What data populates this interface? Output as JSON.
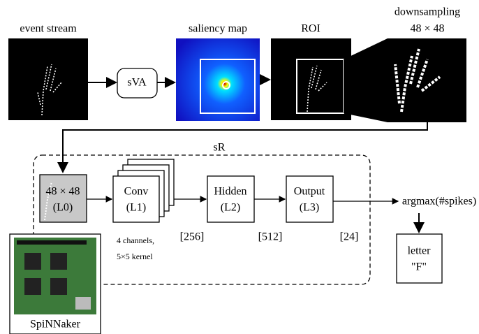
{
  "top": {
    "event_stream": "event stream",
    "sva": "sVA",
    "saliency_map": "saliency map",
    "roi": "ROI",
    "downsampling": "downsampling",
    "downsampling_size": "48 × 48"
  },
  "sr": {
    "title": "sR",
    "layers": [
      {
        "label": "48 × 48",
        "sublabel": "(L0)"
      },
      {
        "label": "Conv",
        "sublabel": "(L1)"
      },
      {
        "label": "Hidden",
        "sublabel": "(L2)"
      },
      {
        "label": "Output",
        "sublabel": "(L3)"
      }
    ],
    "conv_note": [
      "4 channels,",
      "5×5 kernel"
    ],
    "sizes": [
      "[256]",
      "[512]",
      "[24]"
    ],
    "readout": "argmax(#spikes)",
    "result": [
      "letter",
      "\"F\""
    ]
  },
  "hardware": "SpiNNaker"
}
